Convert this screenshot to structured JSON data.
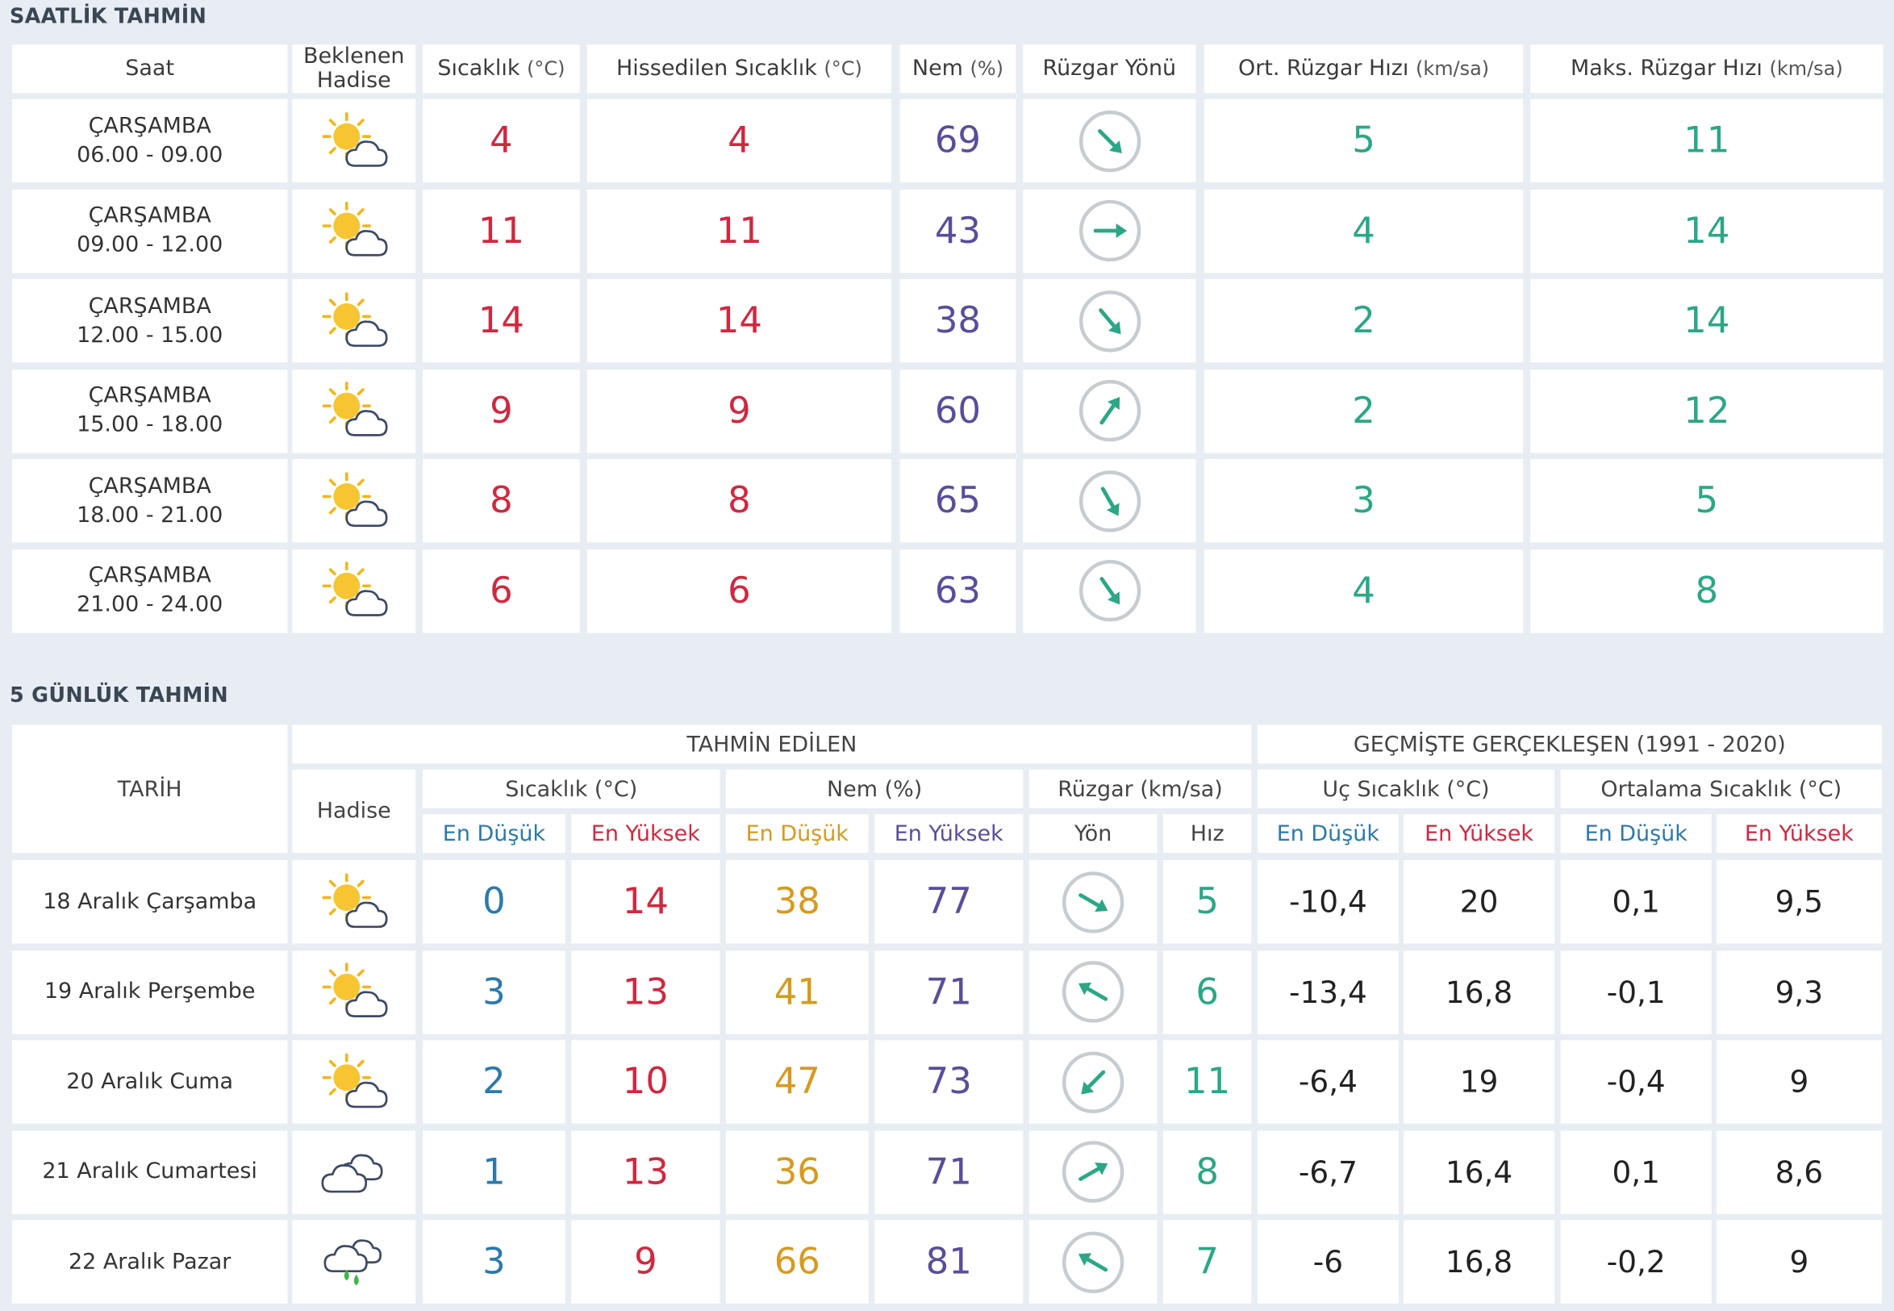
{
  "hourly": {
    "title": "SAATLİK TAHMİN",
    "headers": {
      "saat": "Saat",
      "hadise": "Beklenen Hadise",
      "sicaklik": "Sıcaklık",
      "sicaklik_unit": "(°C)",
      "hissedilen": "Hissedilen Sıcaklık",
      "hissedilen_unit": "(°C)",
      "nem": "Nem",
      "nem_unit": "(%)",
      "ruzgar_yonu": "Rüzgar Yönü",
      "ort_ruzgar": "Ort. Rüzgar Hızı",
      "ort_ruzgar_unit": "(km/sa)",
      "maks_ruzgar": "Maks. Rüzgar Hızı",
      "maks_ruzgar_unit": "(km/sa)"
    },
    "rows": [
      {
        "day": "ÇARŞAMBA",
        "time": "06.00 - 09.00",
        "icon": "partly-cloudy-icon",
        "temp": "4",
        "feels": "4",
        "humidity": "69",
        "wind_dir_deg": 135,
        "wind_avg": "5",
        "wind_max": "11"
      },
      {
        "day": "ÇARŞAMBA",
        "time": "09.00 - 12.00",
        "icon": "partly-cloudy-icon",
        "temp": "11",
        "feels": "11",
        "humidity": "43",
        "wind_dir_deg": 90,
        "wind_avg": "4",
        "wind_max": "14"
      },
      {
        "day": "ÇARŞAMBA",
        "time": "12.00 - 15.00",
        "icon": "partly-cloudy-icon",
        "temp": "14",
        "feels": "14",
        "humidity": "38",
        "wind_dir_deg": 140,
        "wind_avg": "2",
        "wind_max": "14"
      },
      {
        "day": "ÇARŞAMBA",
        "time": "15.00 - 18.00",
        "icon": "partly-cloudy-icon",
        "temp": "9",
        "feels": "9",
        "humidity": "60",
        "wind_dir_deg": 35,
        "wind_avg": "2",
        "wind_max": "12"
      },
      {
        "day": "ÇARŞAMBA",
        "time": "18.00 - 21.00",
        "icon": "partly-cloudy-icon",
        "temp": "8",
        "feels": "8",
        "humidity": "65",
        "wind_dir_deg": 150,
        "wind_avg": "3",
        "wind_max": "5"
      },
      {
        "day": "ÇARŞAMBA",
        "time": "21.00 - 24.00",
        "icon": "partly-cloudy-icon",
        "temp": "6",
        "feels": "6",
        "humidity": "63",
        "wind_dir_deg": 145,
        "wind_avg": "4",
        "wind_max": "8"
      }
    ]
  },
  "daily": {
    "title": "5 GÜNLÜK TAHMİN",
    "headers": {
      "tarih": "TARİH",
      "tahmin_edilen": "TAHMİN EDİLEN",
      "gecmis": "GEÇMİŞTE GERÇEKLEŞEN (1991 - 2020)",
      "hadise": "Hadise",
      "sicaklik": "Sıcaklık (°C)",
      "nem": "Nem (%)",
      "ruzgar": "Rüzgar (km/sa)",
      "uc_sicaklik": "Uç Sıcaklık (°C)",
      "ort_sicaklik": "Ortalama Sıcaklık (°C)",
      "en_dusuk": "En Düşük",
      "en_yuksek": "En Yüksek",
      "yon": "Yön",
      "hiz": "Hız"
    },
    "rows": [
      {
        "date": "18 Aralık Çarşamba",
        "icon": "partly-cloudy-icon",
        "tmin": "0",
        "tmax": "14",
        "hmin": "38",
        "hmax": "77",
        "wind_dir_deg": 120,
        "wind_speed": "5",
        "rec_min": "-10,4",
        "rec_max": "20",
        "avg_min": "0,1",
        "avg_max": "9,5"
      },
      {
        "date": "19 Aralık Perşembe",
        "icon": "partly-cloudy-icon",
        "tmin": "3",
        "tmax": "13",
        "hmin": "41",
        "hmax": "71",
        "wind_dir_deg": 300,
        "wind_speed": "6",
        "rec_min": "-13,4",
        "rec_max": "16,8",
        "avg_min": "-0,1",
        "avg_max": "9,3"
      },
      {
        "date": "20 Aralık Cuma",
        "icon": "partly-cloudy-icon",
        "tmin": "2",
        "tmax": "10",
        "hmin": "47",
        "hmax": "73",
        "wind_dir_deg": 225,
        "wind_speed": "11",
        "rec_min": "-6,4",
        "rec_max": "19",
        "avg_min": "-0,4",
        "avg_max": "9"
      },
      {
        "date": "21 Aralık Cumartesi",
        "icon": "cloudy-icon",
        "tmin": "1",
        "tmax": "13",
        "hmin": "36",
        "hmax": "71",
        "wind_dir_deg": 60,
        "wind_speed": "8",
        "rec_min": "-6,7",
        "rec_max": "16,4",
        "avg_min": "0,1",
        "avg_max": "8,6"
      },
      {
        "date": "22 Aralık Pazar",
        "icon": "rain-cloud-icon",
        "tmin": "3",
        "tmax": "9",
        "hmin": "66",
        "hmax": "81",
        "wind_dir_deg": 300,
        "wind_speed": "7",
        "rec_min": "-6",
        "rec_max": "16,8",
        "avg_min": "-0,2",
        "avg_max": "9"
      }
    ]
  },
  "colors": {
    "background": "#e7edf3",
    "temp_red": "#d0283f",
    "humidity_purple": "#5a4d9a",
    "wind_green": "#2aa786",
    "low_blue": "#2b7aab",
    "humidity_orange": "#d79a1e"
  }
}
